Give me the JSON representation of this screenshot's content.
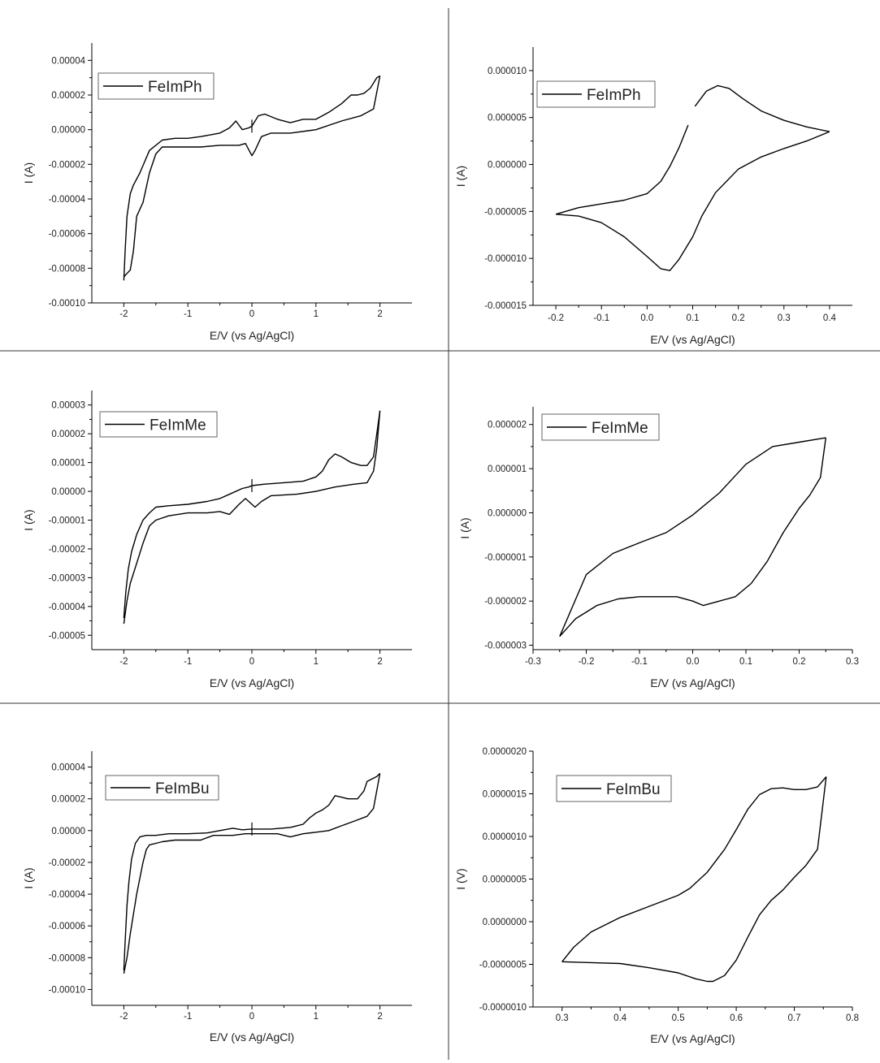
{
  "figure": {
    "line_color": "#000000",
    "divider_color": "#333333"
  },
  "chart_data": [
    {
      "id": "fephimph-wide",
      "type": "line",
      "legend": "FeImPh",
      "xlabel": "E/V (vs Ag/AgCl)",
      "ylabel": "I (A)",
      "xlim": [
        -2.5,
        2.5
      ],
      "ylim": [
        -0.0001,
        5e-05
      ],
      "xticks": [
        -2,
        -1,
        0,
        1,
        2
      ],
      "xtick_labels": [
        "-2",
        "-1",
        "0",
        "1",
        "2"
      ],
      "yticks": [
        -0.0001,
        -8e-05,
        -6e-05,
        -4e-05,
        -2e-05,
        0,
        2e-05,
        4e-05
      ],
      "ytick_labels": [
        "-0.00010",
        "-0.00008",
        "-0.00006",
        "-0.00004",
        "-0.00002",
        "0.00000",
        "0.00002",
        "0.00004"
      ],
      "series": [
        {
          "x": [
            0,
            0.1,
            0.2,
            0.4,
            0.6,
            0.8,
            1.0,
            1.2,
            1.4,
            1.55,
            1.65,
            1.75,
            1.85,
            1.95,
            2.0
          ],
          "y": [
            2e-06,
            8e-06,
            9e-06,
            6e-06,
            4e-06,
            6e-06,
            6e-06,
            1e-05,
            1.5e-05,
            2e-05,
            2e-05,
            2.1e-05,
            2.4e-05,
            3e-05,
            3.1e-05
          ]
        },
        {
          "x": [
            2.0,
            1.9,
            1.7,
            1.4,
            1.0,
            0.6,
            0.3,
            0.15,
            0.05,
            0.0,
            -0.1,
            -0.2,
            -0.5,
            -0.8,
            -1.0,
            -1.2,
            -1.4,
            -1.5,
            -1.6,
            -1.7,
            -1.8,
            -1.85,
            -1.9,
            -1.95,
            -2.0
          ],
          "y": [
            3.1e-05,
            1.2e-05,
            8e-06,
            5e-06,
            0.0,
            -2e-06,
            -2e-06,
            -4e-06,
            -1.2e-05,
            -1.5e-05,
            -8e-06,
            -9e-06,
            -9e-06,
            -1e-05,
            -1e-05,
            -1e-05,
            -1e-05,
            -1.4e-05,
            -2.5e-05,
            -4.2e-05,
            -5e-05,
            -7e-05,
            -8.1e-05,
            -8.3e-05,
            -8.5e-05
          ]
        },
        {
          "x": [
            -2.0,
            -1.98,
            -1.95,
            -1.9,
            -1.85,
            -1.75,
            -1.6,
            -1.4,
            -1.2,
            -1.0,
            -0.8,
            -0.5,
            -0.35,
            -0.25,
            -0.15,
            -0.05,
            0.0
          ],
          "y": [
            -8.7e-05,
            -7e-05,
            -5e-05,
            -3.7e-05,
            -3.2e-05,
            -2.5e-05,
            -1.2e-05,
            -6e-06,
            -5e-06,
            -5e-06,
            -4e-06,
            -2e-06,
            1e-06,
            5e-06,
            0.0,
            1e-06,
            2e-06
          ]
        }
      ]
    },
    {
      "id": "fephimph-narrow",
      "type": "line",
      "legend": "FeImPh",
      "xlabel": "E/V (vs Ag/AgCl)",
      "ylabel": "I (A)",
      "xlim": [
        -0.25,
        0.45
      ],
      "ylim": [
        -1.5e-05,
        1.25e-05
      ],
      "xticks": [
        -0.2,
        -0.1,
        0.0,
        0.1,
        0.2,
        0.3,
        0.4
      ],
      "xtick_labels": [
        "-0.2",
        "-0.1",
        "0.0",
        "0.1",
        "0.2",
        "0.3",
        "0.4"
      ],
      "yticks": [
        -1.5e-05,
        -1e-05,
        -5e-06,
        0,
        5e-06,
        1e-05
      ],
      "ytick_labels": [
        "-0.000015",
        "-0.000010",
        "-0.000005",
        "0.000000",
        "0.000005",
        "0.000010"
      ],
      "series": [
        {
          "x": [
            0.105,
            0.13,
            0.155,
            0.18,
            0.21,
            0.25,
            0.3,
            0.35,
            0.4
          ],
          "y": [
            6.2e-06,
            7.8e-06,
            8.4e-06,
            8.1e-06,
            7e-06,
            5.7e-06,
            4.7e-06,
            4e-06,
            3.5e-06
          ]
        },
        {
          "x": [
            0.4,
            0.35,
            0.3,
            0.25,
            0.2,
            0.15,
            0.12,
            0.1,
            0.07,
            0.05,
            0.03,
            0.0,
            -0.05,
            -0.1,
            -0.15,
            -0.2
          ],
          "y": [
            3.5e-06,
            2.5e-06,
            1.7e-06,
            8e-07,
            -5e-07,
            -3e-06,
            -5.5e-06,
            -7.7e-06,
            -1.01e-05,
            -1.13e-05,
            -1.11e-05,
            -9.8e-06,
            -7.7e-06,
            -6.2e-06,
            -5.5e-06,
            -5.3e-06
          ]
        },
        {
          "x": [
            -0.2,
            -0.15,
            -0.1,
            -0.05,
            0.0,
            0.03,
            0.05,
            0.07,
            0.09
          ],
          "y": [
            -5.3e-06,
            -4.6e-06,
            -4.2e-06,
            -3.8e-06,
            -3.1e-06,
            -1.8e-06,
            -2e-07,
            1.8e-06,
            4.2e-06
          ]
        }
      ]
    },
    {
      "id": "feimme-wide",
      "type": "line",
      "legend": "FeImMe",
      "xlabel": "E/V (vs Ag/AgCl)",
      "ylabel": "I (A)",
      "xlim": [
        -2.5,
        2.5
      ],
      "ylim": [
        -5.5e-05,
        3.5e-05
      ],
      "xticks": [
        -2,
        -1,
        0,
        1,
        2
      ],
      "xtick_labels": [
        "-2",
        "-1",
        "0",
        "1",
        "2"
      ],
      "yticks": [
        -5e-05,
        -4e-05,
        -3e-05,
        -2e-05,
        -1e-05,
        0,
        1e-05,
        2e-05,
        3e-05
      ],
      "ytick_labels": [
        "-0.00005",
        "-0.00004",
        "-0.00003",
        "-0.00002",
        "-0.00001",
        "0.00000",
        "0.00001",
        "0.00002",
        "0.00003"
      ],
      "series": [
        {
          "x": [
            0,
            0.2,
            0.5,
            0.8,
            1.0,
            1.1,
            1.2,
            1.3,
            1.4,
            1.55,
            1.7,
            1.8,
            1.9,
            1.95,
            2.0
          ],
          "y": [
            2e-06,
            2.5e-06,
            3e-06,
            3.5e-06,
            5e-06,
            7e-06,
            1.1e-05,
            1.3e-05,
            1.2e-05,
            1e-05,
            9e-06,
            9e-06,
            1.2e-05,
            2e-05,
            2.8e-05
          ]
        },
        {
          "x": [
            2.0,
            1.95,
            1.9,
            1.8,
            1.6,
            1.3,
            1.0,
            0.7,
            0.3,
            0.15,
            0.05,
            0.0,
            -0.1,
            -0.2,
            -0.35,
            -0.5,
            -0.7,
            -1.0,
            -1.3,
            -1.5,
            -1.6,
            -1.7,
            -1.8,
            -1.9,
            -1.95,
            -2.0
          ],
          "y": [
            2.8e-05,
            1.5e-05,
            7e-06,
            3e-06,
            2.5e-06,
            1.5e-06,
            0.0,
            -1e-06,
            -1.5e-06,
            -3.5e-06,
            -5.5e-06,
            -4.5e-06,
            -2.5e-06,
            -4.5e-06,
            -8e-06,
            -7e-06,
            -7.5e-06,
            -7.5e-06,
            -8.5e-06,
            -1e-05,
            -1.2e-05,
            -1.8e-05,
            -2.5e-05,
            -3.2e-05,
            -3.8e-05,
            -4.6e-05
          ]
        },
        {
          "x": [
            -2.0,
            -1.97,
            -1.93,
            -1.88,
            -1.8,
            -1.7,
            -1.6,
            -1.5,
            -1.3,
            -1.0,
            -0.7,
            -0.5,
            -0.3,
            -0.15,
            -0.05,
            0.0
          ],
          "y": [
            -4.4e-05,
            -3.5e-05,
            -2.7e-05,
            -2.1e-05,
            -1.5e-05,
            -1e-05,
            -7.5e-06,
            -5.5e-06,
            -5e-06,
            -4.5e-06,
            -3.5e-06,
            -2.5e-06,
            -5e-07,
            1e-06,
            1.5e-06,
            2e-06
          ]
        }
      ]
    },
    {
      "id": "feimme-narrow",
      "type": "line",
      "legend": "FeImMe",
      "xlabel": "E/V (vs Ag/AgCl)",
      "ylabel": "I (A)",
      "xlim": [
        -0.3,
        0.3
      ],
      "ylim": [
        -3.1e-06,
        2.4e-06
      ],
      "xticks": [
        -0.3,
        -0.2,
        -0.1,
        0.0,
        0.1,
        0.2,
        0.3
      ],
      "xtick_labels": [
        "-0.3",
        "-0.2",
        "-0.1",
        "0.0",
        "0.1",
        "0.2",
        "0.3"
      ],
      "yticks": [
        -3e-06,
        -2e-06,
        -1e-06,
        0,
        1e-06,
        2e-06
      ],
      "ytick_labels": [
        "-0.000003",
        "-0.000002",
        "-0.000001",
        "0.000000",
        "0.000001",
        "0.000002"
      ],
      "series": [
        {
          "x": [
            -0.25,
            -0.2,
            -0.15,
            -0.1,
            -0.05,
            0.0,
            0.05,
            0.1,
            0.15,
            0.2,
            0.25
          ],
          "y": [
            -2.8e-06,
            -1.4e-06,
            -9.2e-07,
            -6.8e-07,
            -4.5e-07,
            -5e-08,
            4.5e-07,
            1.1e-06,
            1.5e-06,
            1.6e-06,
            1.7e-06
          ]
        },
        {
          "x": [
            0.25,
            0.24,
            0.22,
            0.2,
            0.17,
            0.14,
            0.11,
            0.08,
            0.05,
            0.02,
            0.0,
            -0.03,
            -0.07,
            -0.1,
            -0.14,
            -0.18,
            -0.22,
            -0.25
          ],
          "y": [
            1.7e-06,
            8e-07,
            4e-07,
            1e-07,
            -4.5e-07,
            -1.1e-06,
            -1.6e-06,
            -1.9e-06,
            -2e-06,
            -2.1e-06,
            -2e-06,
            -1.9e-06,
            -1.9e-06,
            -1.9e-06,
            -1.95e-06,
            -2.1e-06,
            -2.4e-06,
            -2.8e-06
          ]
        }
      ]
    },
    {
      "id": "feimbu-wide",
      "type": "line",
      "legend": "FeImBu",
      "xlabel": "E/V (vs Ag/AgCl)",
      "ylabel": "I (A)",
      "xlim": [
        -2.5,
        2.5
      ],
      "ylim": [
        -0.00011,
        5e-05
      ],
      "xticks": [
        -2,
        -1,
        0,
        1,
        2
      ],
      "xtick_labels": [
        "-2",
        "-1",
        "0",
        "1",
        "2"
      ],
      "yticks": [
        -0.0001,
        -8e-05,
        -6e-05,
        -4e-05,
        -2e-05,
        0,
        2e-05,
        4e-05
      ],
      "ytick_labels": [
        "-0.00010",
        "-0.00008",
        "-0.00006",
        "-0.00004",
        "-0.00002",
        "0.00000",
        "0.00002",
        "0.00004"
      ],
      "series": [
        {
          "x": [
            0,
            0.3,
            0.6,
            0.8,
            0.9,
            1.0,
            1.1,
            1.2,
            1.3,
            1.4,
            1.5,
            1.65,
            1.75,
            1.8,
            1.85,
            1.95,
            2.0
          ],
          "y": [
            1e-06,
            1e-06,
            2e-06,
            4e-06,
            8e-06,
            1.1e-05,
            1.3e-05,
            1.6e-05,
            2.2e-05,
            2.1e-05,
            2e-05,
            2e-05,
            2.5e-05,
            3.1e-05,
            3.2e-05,
            3.4e-05,
            3.6e-05
          ]
        },
        {
          "x": [
            2.0,
            1.9,
            1.8,
            1.6,
            1.4,
            1.2,
            1.0,
            0.8,
            0.6,
            0.4,
            0.1,
            -0.1,
            -0.3,
            -0.6,
            -0.8,
            -1.0,
            -1.2,
            -1.4,
            -1.5,
            -1.6,
            -1.65,
            -1.7,
            -1.8,
            -1.9,
            -1.95,
            -2.0
          ],
          "y": [
            3.6e-05,
            1.4e-05,
            9e-06,
            6e-06,
            3e-06,
            0.0,
            -1e-06,
            -2e-06,
            -4e-06,
            -2e-06,
            -2e-06,
            -2e-06,
            -3e-06,
            -3e-06,
            -6e-06,
            -6e-06,
            -6e-06,
            -7e-06,
            -8e-06,
            -9e-06,
            -1.2e-05,
            -2e-05,
            -4e-05,
            -6.5e-05,
            -8e-05,
            -9e-05
          ]
        },
        {
          "x": [
            -2.0,
            -1.98,
            -1.95,
            -1.92,
            -1.88,
            -1.82,
            -1.75,
            -1.65,
            -1.5,
            -1.3,
            -1.0,
            -0.7,
            -0.5,
            -0.3,
            -0.15,
            0.0
          ],
          "y": [
            -8.8e-05,
            -7e-05,
            -4.7e-05,
            -3.2e-05,
            -1.8e-05,
            -8e-06,
            -4e-06,
            -3e-06,
            -3e-06,
            -2e-06,
            -2e-06,
            -1.5e-06,
            0.0,
            1.5e-06,
            5e-07,
            1e-06
          ]
        }
      ]
    },
    {
      "id": "feimbu-narrow",
      "type": "line",
      "legend": "FeImBu",
      "xlabel": "E/V (vs Ag/AgCl)",
      "ylabel": "I (V)",
      "xlim": [
        0.25,
        0.8
      ],
      "ylim": [
        -1e-06,
        2e-06
      ],
      "xticks": [
        0.3,
        0.4,
        0.5,
        0.6,
        0.7,
        0.8
      ],
      "xtick_labels": [
        "0.3",
        "0.4",
        "0.5",
        "0.6",
        "0.7",
        "0.8"
      ],
      "yticks": [
        -1e-06,
        -5e-07,
        0,
        5e-07,
        1e-06,
        1.5e-06,
        2e-06
      ],
      "ytick_labels": [
        "-0.0000010",
        "-0.0000005",
        "0.0000000",
        "0.0000005",
        "0.0000010",
        "0.0000015",
        "0.0000020"
      ],
      "series": [
        {
          "x": [
            0.3,
            0.32,
            0.35,
            0.4,
            0.45,
            0.5,
            0.52,
            0.55,
            0.58,
            0.6,
            0.62,
            0.64,
            0.66,
            0.68,
            0.7,
            0.72,
            0.74,
            0.755
          ],
          "y": [
            -4.7e-07,
            -3e-07,
            -1.2e-07,
            5e-08,
            1.8e-07,
            3.1e-07,
            3.9e-07,
            5.8e-07,
            8.5e-07,
            1.08e-06,
            1.32e-06,
            1.49e-06,
            1.56e-06,
            1.57e-06,
            1.55e-06,
            1.55e-06,
            1.58e-06,
            1.7e-06
          ]
        },
        {
          "x": [
            0.755,
            0.74,
            0.72,
            0.7,
            0.68,
            0.66,
            0.64,
            0.62,
            0.6,
            0.58,
            0.56,
            0.55,
            0.53,
            0.5,
            0.45,
            0.4,
            0.35,
            0.3
          ],
          "y": [
            1.7e-06,
            8.5e-07,
            6.6e-07,
            5.2e-07,
            3.7e-07,
            2.5e-07,
            8e-08,
            -1.8e-07,
            -4.5e-07,
            -6.3e-07,
            -7e-07,
            -7e-07,
            -6.7e-07,
            -6e-07,
            -5.4e-07,
            -4.9e-07,
            -4.8e-07,
            -4.7e-07
          ]
        }
      ]
    }
  ]
}
